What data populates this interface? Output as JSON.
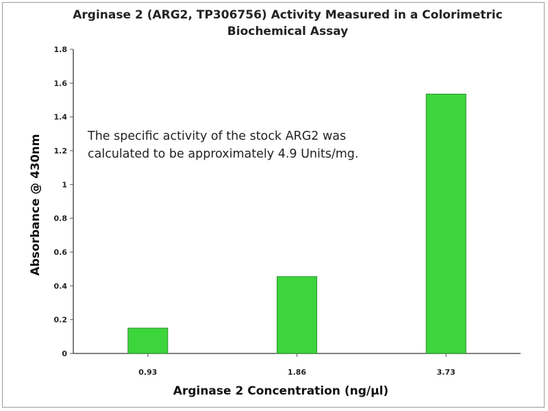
{
  "chart_data": {
    "type": "bar",
    "title_lines": [
      "Arginase 2 (ARG2, TP306756) Activity  Measured in a Colorimetric",
      "Biochemical Assay"
    ],
    "xlabel": "Arginase 2 Concentration (ng/µl)",
    "ylabel": "Absorbance @ 430nm",
    "categories": [
      "0.93",
      "1.86",
      "3.73"
    ],
    "values": [
      0.15,
      0.455,
      1.535
    ],
    "ylim": [
      0,
      1.8
    ],
    "yticks": [
      {
        "value": 0,
        "label": "0"
      },
      {
        "value": 0.2,
        "label": "0.2"
      },
      {
        "value": 0.4,
        "label": "0.4"
      },
      {
        "value": 0.6,
        "label": "0.6"
      },
      {
        "value": 0.8,
        "label": "0.8"
      },
      {
        "value": 1.0,
        "label": "1"
      },
      {
        "value": 1.2,
        "label": "1.2"
      },
      {
        "value": 1.4,
        "label": "1.4"
      },
      {
        "value": 1.6,
        "label": "1.6"
      },
      {
        "value": 1.8,
        "label": "1.8"
      }
    ],
    "annotation_lines": [
      "The specific activity of the stock ARG2 was",
      "calculated to be approximately  4.9 Units/mg."
    ],
    "bar_color": "#3cd63c",
    "bar_edge_color": "#2a8a2a",
    "grid": false,
    "legend": "none"
  }
}
